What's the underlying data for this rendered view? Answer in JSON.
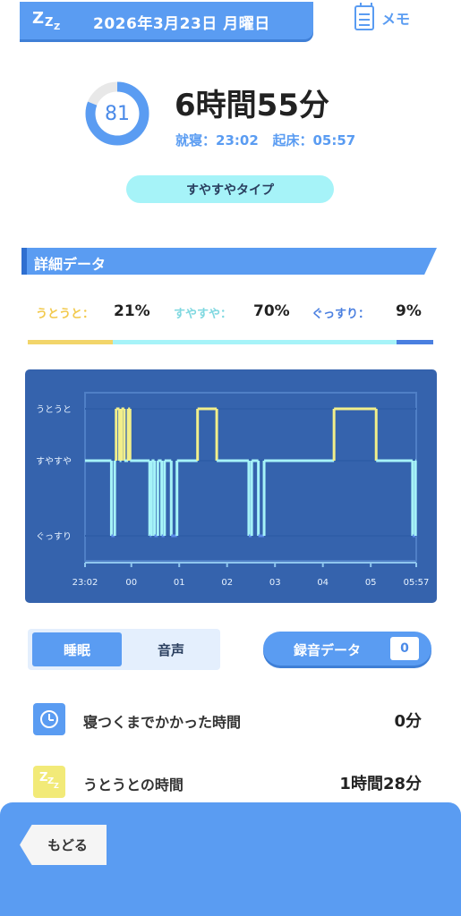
{
  "header": {
    "date": "2026年3月23日 月曜日",
    "memo_label": "メモ"
  },
  "summary": {
    "score": "81",
    "score_fraction": 0.81,
    "duration": "6時間55分",
    "bedtime_label": "就寝：",
    "bedtime": "23:02",
    "wake_label": "起床：",
    "wake": "05:57",
    "sleep_type": "すやすやタイプ"
  },
  "detail": {
    "title": "詳細データ",
    "stats": [
      {
        "label": "うとうと：",
        "value": "21%",
        "fraction": 0.21,
        "color": "#f2d56a"
      },
      {
        "label": "すやすや：",
        "value": "70%",
        "fraction": 0.7,
        "color": "#a6f3f8"
      },
      {
        "label": "ぐっすり：",
        "value": "9%",
        "fraction": 0.09,
        "color": "#4a7fe0"
      }
    ]
  },
  "chart_data": {
    "type": "line",
    "y_categories": [
      "ぐっすり",
      "すやすや",
      "うとうと"
    ],
    "x_ticks": [
      "23:02",
      "00",
      "01",
      "02",
      "03",
      "04",
      "05",
      "05:57"
    ],
    "x_tick_hours": [
      0,
      0.967,
      1.967,
      2.967,
      3.967,
      4.967,
      5.967,
      6.917
    ],
    "x_range_hours": [
      0,
      6.917
    ],
    "colors": {
      "utouto": "#f2ef8a",
      "suyasuya": "#a6f3f8",
      "gussuri": "#5a8ae8",
      "background": "#3563ad"
    },
    "series_levels": [
      [
        0.0,
        1
      ],
      [
        0.55,
        0
      ],
      [
        0.62,
        1
      ],
      [
        0.65,
        2
      ],
      [
        0.72,
        1
      ],
      [
        0.76,
        2
      ],
      [
        0.82,
        1
      ],
      [
        0.9,
        2
      ],
      [
        0.94,
        1
      ],
      [
        1.35,
        0
      ],
      [
        1.39,
        1
      ],
      [
        1.45,
        0
      ],
      [
        1.52,
        1
      ],
      [
        1.6,
        0
      ],
      [
        1.66,
        1
      ],
      [
        1.8,
        0
      ],
      [
        1.92,
        1
      ],
      [
        2.35,
        2
      ],
      [
        2.75,
        1
      ],
      [
        3.42,
        0
      ],
      [
        3.48,
        1
      ],
      [
        3.62,
        0
      ],
      [
        3.74,
        1
      ],
      [
        5.2,
        2
      ],
      [
        6.08,
        1
      ],
      [
        6.84,
        0
      ],
      [
        6.9,
        1
      ],
      [
        6.917,
        1
      ]
    ]
  },
  "tabs": {
    "sleep": "睡眠",
    "sound": "音声"
  },
  "recording": {
    "label": "録音データ",
    "count": "0"
  },
  "rows": [
    {
      "label": "寝つくまでかかった時間",
      "value": "0分",
      "icon": "clock-icon",
      "icon_color": "#5a9cf2"
    },
    {
      "label": "うとうとの時間",
      "value": "1時間28分",
      "icon": "zzz-icon",
      "icon_color": "#f2ea78"
    }
  ],
  "footer": {
    "back_label": "もどる"
  }
}
